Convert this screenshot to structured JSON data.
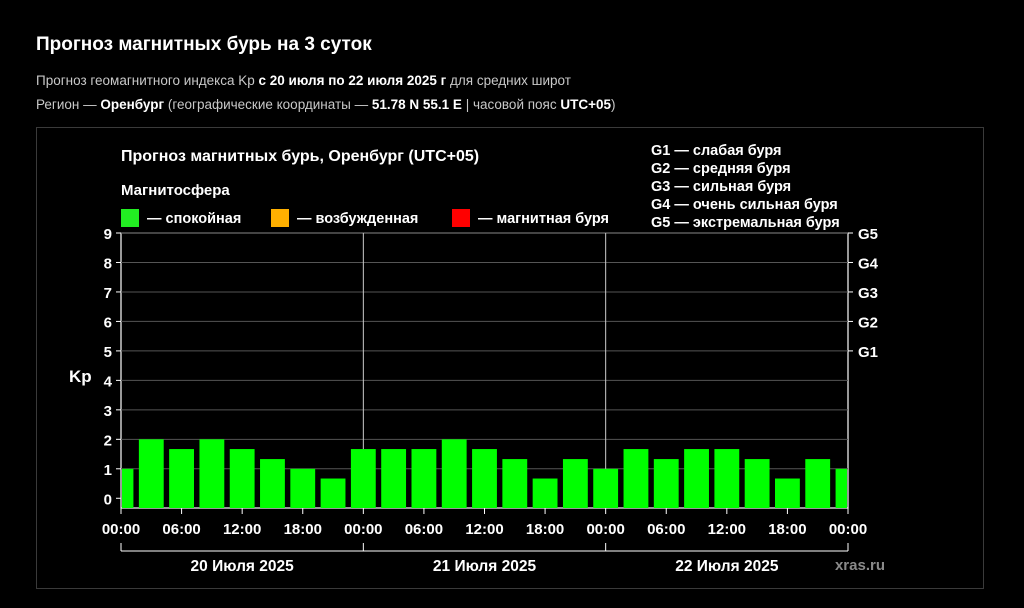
{
  "page": {
    "title": "Прогноз магнитных бурь на 3 суток",
    "line1": {
      "prefix": "Прогноз геомагнитного индекса Kp ",
      "range": "с 20 июля по 22 июля 2025 г",
      "suffix": " для средних широт"
    },
    "line2": {
      "prefix": "Регион — ",
      "region": "Оренбург",
      "coords_prefix": " (географические координаты — ",
      "coords": "51.78 N 55.1 E",
      "tz_prefix": " | часовой пояс ",
      "tz": "UTC+05",
      "suffix": ")"
    }
  },
  "chart_data": {
    "type": "bar",
    "title": "Прогноз магнитных бурь, Оренбург (UTC+05)",
    "ylabel": "Kp",
    "ylim": [
      0,
      9
    ],
    "yticks": [
      0,
      1,
      2,
      3,
      4,
      5,
      6,
      7,
      8,
      9
    ],
    "right_ticks": [
      {
        "value": 5,
        "label": "G1"
      },
      {
        "value": 6,
        "label": "G2"
      },
      {
        "value": 7,
        "label": "G3"
      },
      {
        "value": 8,
        "label": "G4"
      },
      {
        "value": 9,
        "label": "G5"
      }
    ],
    "xticks": [
      "00:00",
      "06:00",
      "12:00",
      "18:00",
      "00:00",
      "06:00",
      "12:00",
      "18:00",
      "00:00",
      "06:00",
      "12:00",
      "18:00",
      "00:00"
    ],
    "days": [
      "20 Июля 2025",
      "21 Июля 2025",
      "22 Июля 2025"
    ],
    "values": [
      1,
      2,
      1.67,
      2,
      1.67,
      1.33,
      1,
      0.67,
      1.67,
      1.67,
      1.67,
      2,
      1.67,
      1.33,
      0.67,
      1.33,
      1,
      1.67,
      1.33,
      1.67,
      1.67,
      1.33,
      0.67,
      1.33,
      1
    ],
    "bar_color": "#00ff00",
    "legend": {
      "title": "Магнитосфера",
      "items": [
        {
          "label": "— спокойная",
          "color": "#22ee22"
        },
        {
          "label": "— возбужденная",
          "color": "#ffb000"
        },
        {
          "label": "— магнитная буря",
          "color": "#ff0000"
        }
      ]
    },
    "storm_legend": [
      "G1 — слабая буря",
      "G2 — средняя буря",
      "G3 — сильная буря",
      "G4 — очень сильная буря",
      "G5 — экстремальная буря"
    ],
    "watermark": "xras.ru",
    "grid": true
  }
}
